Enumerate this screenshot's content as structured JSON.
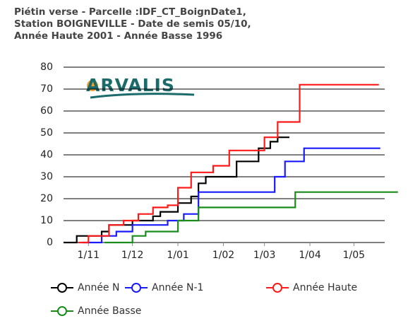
{
  "chart_data": {
    "type": "line",
    "step": true,
    "title": [
      "Piétin verse - Parcelle :IDF_CT_BoignDate1,",
      "Station BOIGNEVILLE - Date de semis 05/10,",
      "Année Haute 2001 - Année Basse 1996"
    ],
    "logo": "ARVALIS",
    "ylim": [
      0,
      80
    ],
    "yticks": [
      0,
      10,
      20,
      30,
      40,
      50,
      60,
      70,
      80
    ],
    "grid": true,
    "xlim": [
      "10-15",
      "05-22"
    ],
    "xticks": [
      {
        "value": "11-01",
        "label": "1/11"
      },
      {
        "value": "12-01",
        "label": "1/12"
      },
      {
        "value": "01-01",
        "label": "1/01"
      },
      {
        "value": "02-01",
        "label": "1/02"
      },
      {
        "value": "03-01",
        "label": "1/03"
      },
      {
        "value": "04-01",
        "label": "1/04"
      },
      {
        "value": "05-01",
        "label": "1/05"
      }
    ],
    "series": [
      {
        "name": "Année N",
        "color": "#000000",
        "x": [
          "10-15",
          "10-24",
          "11-10",
          "11-15",
          "12-01",
          "12-15",
          "12-20",
          "01-01",
          "01-10",
          "01-15",
          "01-20",
          "02-10",
          "02-25",
          "03-05",
          "03-10",
          "03-18"
        ],
        "values": [
          0,
          3,
          5,
          8,
          10,
          12,
          14,
          18,
          21,
          27,
          30,
          37,
          43,
          46,
          48,
          48
        ]
      },
      {
        "name": "Année N-1",
        "color": "#1a1aff",
        "x": [
          "10-28",
          "11-10",
          "11-20",
          "12-01",
          "12-25",
          "01-05",
          "01-15",
          "03-08",
          "03-15",
          "03-28",
          "05-19"
        ],
        "values": [
          0,
          3,
          5,
          8,
          10,
          13,
          23,
          30,
          37,
          43,
          43
        ]
      },
      {
        "name": "Année Haute",
        "color": "#ff1a1a",
        "x": [
          "10-25",
          "11-01",
          "11-15",
          "11-25",
          "12-05",
          "12-15",
          "12-25",
          "01-01",
          "01-10",
          "01-25",
          "02-05",
          "03-01",
          "03-10",
          "03-25",
          "05-18"
        ],
        "values": [
          0,
          3,
          8,
          10,
          13,
          16,
          17,
          25,
          32,
          35,
          42,
          48,
          55,
          72,
          72
        ]
      },
      {
        "name": "Année Basse",
        "color": "#1a8c1a",
        "x": [
          "11-12",
          "12-01",
          "12-10",
          "01-01",
          "01-15",
          "03-22",
          "05-31"
        ],
        "values": [
          0,
          3,
          5,
          10,
          16,
          23,
          23
        ]
      }
    ]
  }
}
